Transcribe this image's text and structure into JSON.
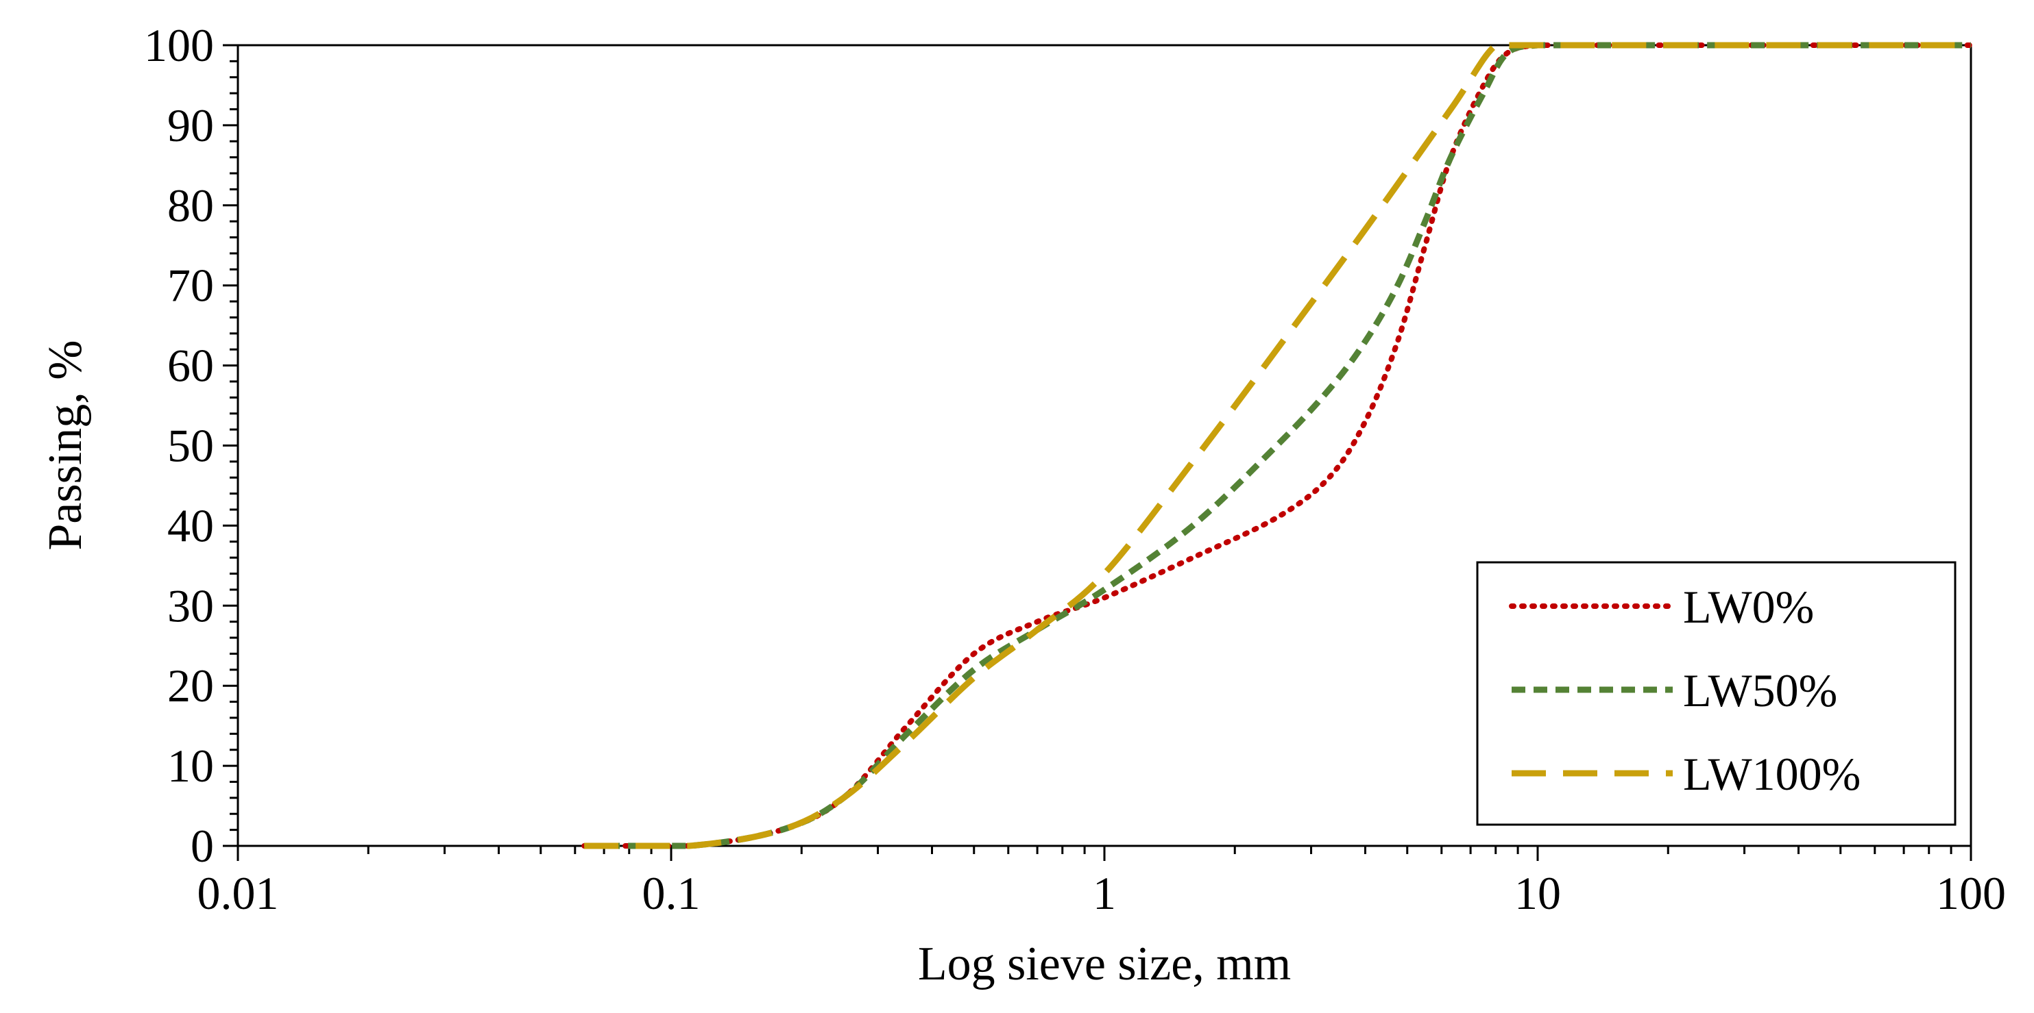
{
  "chart_data": {
    "type": "line",
    "title": "",
    "xlabel": "Log sieve size, mm",
    "ylabel": "Passing, %",
    "xscale": "log",
    "xlim": [
      0.01,
      100
    ],
    "ylim": [
      0,
      100
    ],
    "x_ticks": [
      "0.01",
      "0.1",
      "1",
      "10",
      "100"
    ],
    "y_ticks": [
      "0",
      "10",
      "20",
      "30",
      "40",
      "50",
      "60",
      "70",
      "80",
      "90",
      "100"
    ],
    "grid": false,
    "legend_position": "bottom-right",
    "series": [
      {
        "name": "LW0%",
        "color": "#c00000",
        "style": "dotted",
        "x": [
          0.063,
          0.11,
          0.18,
          0.25,
          0.35,
          0.5,
          0.7,
          1.0,
          1.6,
          2.5,
          3.3,
          4.0,
          4.75,
          5.5,
          6.3,
          7.5,
          8.5,
          10,
          12.5,
          20,
          50,
          100
        ],
        "y": [
          0,
          0,
          2,
          6,
          15,
          24,
          28,
          31,
          36,
          41,
          46,
          53,
          63,
          75,
          86,
          95,
          99,
          100,
          100,
          100,
          100,
          100
        ]
      },
      {
        "name": "LW50%",
        "color": "#548235",
        "style": "dashed",
        "x": [
          0.063,
          0.11,
          0.18,
          0.25,
          0.35,
          0.5,
          0.7,
          1.0,
          1.6,
          2.5,
          3.3,
          4.0,
          4.75,
          5.5,
          6.3,
          7.5,
          8.5,
          10,
          12.5,
          20,
          50,
          100
        ],
        "y": [
          0,
          0,
          2,
          6,
          14,
          22,
          27,
          32,
          40,
          50,
          57,
          63,
          70,
          78,
          86,
          94,
          99,
          100,
          100,
          100,
          100,
          100
        ]
      },
      {
        "name": "LW100%",
        "color": "#c9a00c",
        "style": "long-dash",
        "x": [
          0.063,
          0.11,
          0.18,
          0.25,
          0.35,
          0.5,
          0.7,
          1.0,
          1.6,
          2.5,
          4.0,
          6.3,
          8.0,
          9.5,
          12.5,
          20,
          50,
          100
        ],
        "y": [
          0,
          0,
          2,
          6,
          13,
          21,
          27,
          34,
          48,
          62,
          77,
          92,
          100,
          100,
          100,
          100,
          100,
          100
        ]
      }
    ]
  }
}
